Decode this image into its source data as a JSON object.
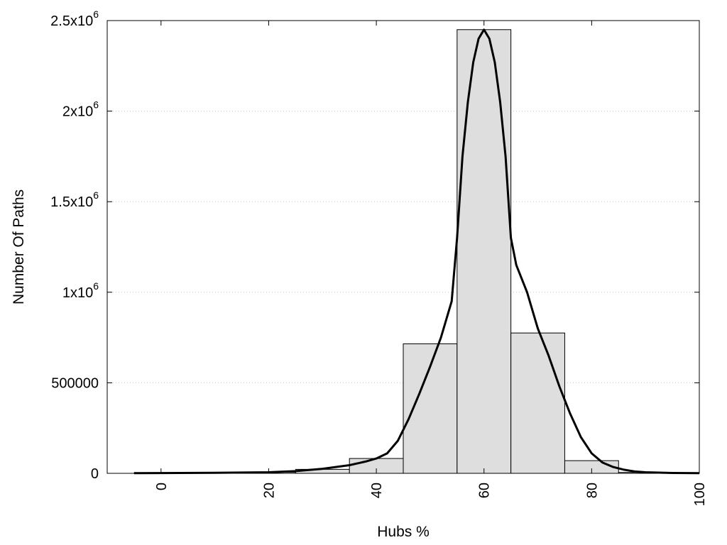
{
  "chart_data": {
    "type": "bar",
    "xlabel": "Hubs %",
    "ylabel": "Number Of Paths",
    "xlim": [
      -10,
      100
    ],
    "ylim": [
      0,
      2500000
    ],
    "x_ticks": [
      {
        "value": 0,
        "label": "0"
      },
      {
        "value": 20,
        "label": "20"
      },
      {
        "value": 40,
        "label": "40"
      },
      {
        "value": 60,
        "label": "60"
      },
      {
        "value": 80,
        "label": "80"
      },
      {
        "value": 100,
        "label": "100"
      }
    ],
    "y_ticks": [
      {
        "value": 0,
        "label": "0",
        "exp": ""
      },
      {
        "value": 500000,
        "label": "500000",
        "exp": ""
      },
      {
        "value": 1000000,
        "label": "1x10",
        "exp": "6"
      },
      {
        "value": 1500000,
        "label": "1.5x10",
        "exp": "6"
      },
      {
        "value": 2000000,
        "label": "2x10",
        "exp": "6"
      },
      {
        "value": 2500000,
        "label": "2.5x10",
        "exp": "6"
      }
    ],
    "grid": true,
    "bar_width": 10,
    "bar_fill": "#dedede",
    "bars": [
      {
        "x": 0,
        "value": 2000
      },
      {
        "x": 10,
        "value": 3000
      },
      {
        "x": 20,
        "value": 6000
      },
      {
        "x": 30,
        "value": 22000
      },
      {
        "x": 40,
        "value": 82000
      },
      {
        "x": 50,
        "value": 715000
      },
      {
        "x": 60,
        "value": 2450000
      },
      {
        "x": 70,
        "value": 775000
      },
      {
        "x": 80,
        "value": 70000
      },
      {
        "x": 90,
        "value": 5000
      }
    ],
    "curve": {
      "x": [
        -5,
        0,
        10,
        20,
        25,
        30,
        35,
        38,
        40,
        42,
        44,
        46,
        48,
        50,
        52,
        54,
        55,
        56,
        57,
        58,
        59,
        60,
        61,
        62,
        63,
        64,
        65,
        66,
        68,
        70,
        72,
        74,
        76,
        78,
        80,
        82,
        84,
        86,
        88,
        90,
        95,
        100
      ],
      "y": [
        1000,
        1500,
        3000,
        6000,
        12000,
        25000,
        45000,
        65000,
        82000,
        110000,
        180000,
        300000,
        440000,
        590000,
        750000,
        950000,
        1300000,
        1750000,
        2050000,
        2270000,
        2400000,
        2450000,
        2400000,
        2270000,
        2050000,
        1750000,
        1300000,
        1150000,
        1000000,
        800000,
        650000,
        480000,
        330000,
        200000,
        110000,
        60000,
        35000,
        20000,
        10000,
        6000,
        2000,
        1000
      ]
    }
  }
}
